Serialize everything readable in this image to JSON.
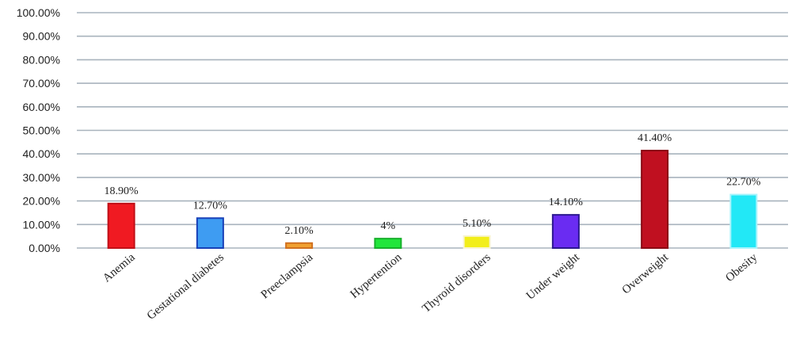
{
  "chart_data": {
    "type": "bar",
    "title": "",
    "xlabel": "",
    "ylabel": "",
    "ylim": [
      0,
      100
    ],
    "yticks": [
      "0.00%",
      "10.00%",
      "20.00%",
      "30.00%",
      "40.00%",
      "50.00%",
      "60.00%",
      "70.00%",
      "80.00%",
      "90.00%",
      "100.00%"
    ],
    "grid": true,
    "legend": "none",
    "categories": [
      "Anemia",
      "Gestational diabetes",
      "Preeclampsia",
      "Hypertention",
      "Thyroid disorders",
      "Under weight",
      "Overweight",
      "Obesity"
    ],
    "values": [
      18.9,
      12.7,
      2.1,
      4,
      5.1,
      14.1,
      41.4,
      22.7
    ],
    "data_labels": [
      "18.90%",
      "12.70%",
      "2.10%",
      "4%",
      "5.10%",
      "14.10%",
      "41.40%",
      "22.70%"
    ],
    "fill_colors": [
      "#f01a22",
      "#3e9cf2",
      "#f0a030",
      "#22e63c",
      "#f2ee1a",
      "#6a2cf2",
      "#c01020",
      "#22e8f6"
    ],
    "border_colors": [
      "#c01018",
      "#1840b8",
      "#d07020",
      "#18b02c",
      "#f8f4d0",
      "#2c1890",
      "#8a0a14",
      "#a8f4fc"
    ]
  }
}
